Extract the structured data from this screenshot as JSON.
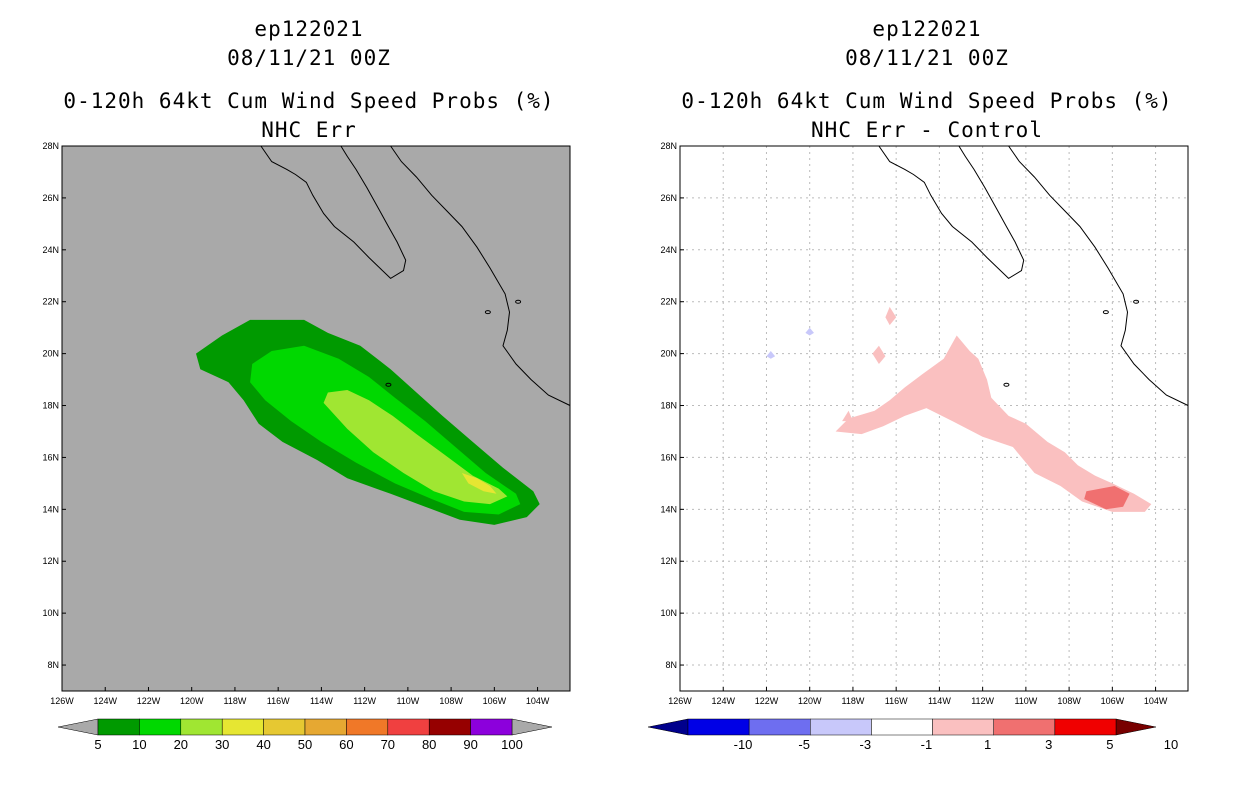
{
  "panels": [
    {
      "title_line1": "ep122021",
      "title_line2": "08/11/21 00Z",
      "title_line3": "0-120h 64kt Cum Wind Speed Probs (%)",
      "title_line4": "NHC Err",
      "background_color": "#a9a9a9",
      "colorbar": {
        "labels": [
          "5",
          "10",
          "20",
          "30",
          "40",
          "50",
          "60",
          "70",
          "80",
          "90",
          "100"
        ],
        "colors": [
          "#009a00",
          "#00d800",
          "#a0e632",
          "#e6e632",
          "#e6c832",
          "#e6a832",
          "#f07828",
          "#f04040",
          "#960000",
          "#8c00dc"
        ],
        "below_color": "#a9a9a9",
        "above_color": "#a9a9a9"
      }
    },
    {
      "title_line1": "ep122021",
      "title_line2": "08/11/21 00Z",
      "title_line3": "0-120h 64kt Cum Wind Speed Probs (%)",
      "title_line4": "NHC Err - Control",
      "background_color": "#ffffff",
      "colorbar": {
        "labels": [
          "-10",
          "-5",
          "-3",
          "-1",
          "1",
          "3",
          "5",
          "10"
        ],
        "colors": [
          "#0000e6",
          "#6e6ef0",
          "#c8c8fa",
          "#ffffff",
          "#fac0c0",
          "#f07070",
          "#f00000"
        ],
        "below_color": "#00008c",
        "above_color": "#780000"
      }
    }
  ],
  "chart_data": [
    {
      "type": "heatmap",
      "title": "ep122021 08/11/21 00Z 0-120h 64kt Cum Wind Speed Probs (%) NHC Err",
      "xlabel": "",
      "ylabel": "",
      "xlim": [
        -126,
        -102.5
      ],
      "ylim": [
        7,
        28
      ],
      "x_ticks": [
        -126,
        -124,
        -122,
        -120,
        -118,
        -116,
        -114,
        -112,
        -110,
        -108,
        -106,
        -104
      ],
      "x_tick_labels": [
        "126W",
        "124W",
        "122W",
        "120W",
        "118W",
        "116W",
        "114W",
        "112W",
        "110W",
        "108W",
        "106W",
        "104W"
      ],
      "y_ticks": [
        8,
        10,
        12,
        14,
        16,
        18,
        20,
        22,
        24,
        26,
        28
      ],
      "y_tick_labels": [
        "8N",
        "10N",
        "12N",
        "14N",
        "16N",
        "18N",
        "20N",
        "22N",
        "24N",
        "26N",
        "28N"
      ],
      "grid": false,
      "contours": [
        {
          "level": "5-10",
          "color": "#009a00",
          "outline": [
            [
              -119.8,
              20
            ],
            [
              -118.6,
              20.7
            ],
            [
              -117.3,
              21.3
            ],
            [
              -115.8,
              21.3
            ],
            [
              -114.8,
              21.3
            ],
            [
              -113.7,
              20.8
            ],
            [
              -112.2,
              20.3
            ],
            [
              -110.8,
              19.4
            ],
            [
              -109.6,
              18.5
            ],
            [
              -108.4,
              17.6
            ],
            [
              -107,
              16.6
            ],
            [
              -105.6,
              15.6
            ],
            [
              -104.2,
              14.7
            ],
            [
              -103.9,
              14.2
            ],
            [
              -104.5,
              13.7
            ],
            [
              -106,
              13.4
            ],
            [
              -107.6,
              13.6
            ],
            [
              -109.2,
              14.1
            ],
            [
              -110.8,
              14.6
            ],
            [
              -112.8,
              15.2
            ],
            [
              -114.2,
              15.9
            ],
            [
              -115.8,
              16.6
            ],
            [
              -116.9,
              17.3
            ],
            [
              -117.6,
              18.2
            ],
            [
              -118.3,
              18.9
            ],
            [
              -119.6,
              19.4
            ]
          ]
        },
        {
          "level": "10-20",
          "color": "#00d800",
          "outline": [
            [
              -117.2,
              19.6
            ],
            [
              -116.3,
              20.1
            ],
            [
              -114.8,
              20.3
            ],
            [
              -113.2,
              19.8
            ],
            [
              -111.8,
              19.1
            ],
            [
              -110.6,
              18.3
            ],
            [
              -109.2,
              17.4
            ],
            [
              -107.8,
              16.4
            ],
            [
              -106.4,
              15.4
            ],
            [
              -105,
              14.6
            ],
            [
              -104.8,
              14.2
            ],
            [
              -105.8,
              13.8
            ],
            [
              -107.4,
              13.9
            ],
            [
              -108.9,
              14.4
            ],
            [
              -110.6,
              15
            ],
            [
              -112.4,
              15.8
            ],
            [
              -114,
              16.6
            ],
            [
              -115.4,
              17.4
            ],
            [
              -116.6,
              18.2
            ],
            [
              -117.3,
              18.9
            ]
          ]
        },
        {
          "level": "20-30",
          "color": "#a0e632",
          "outline": [
            [
              -113.7,
              18.5
            ],
            [
              -112.8,
              18.6
            ],
            [
              -111.8,
              18.2
            ],
            [
              -110.7,
              17.6
            ],
            [
              -109.6,
              16.9
            ],
            [
              -108.3,
              16.1
            ],
            [
              -107,
              15.3
            ],
            [
              -105.8,
              14.8
            ],
            [
              -105.4,
              14.5
            ],
            [
              -106.2,
              14.2
            ],
            [
              -107.4,
              14.3
            ],
            [
              -108.8,
              14.7
            ],
            [
              -110.2,
              15.4
            ],
            [
              -111.6,
              16.2
            ],
            [
              -112.8,
              17.1
            ],
            [
              -113.9,
              18.1
            ]
          ]
        },
        {
          "level": "30-40",
          "color": "#e6e632",
          "outline": [
            [
              -107.5,
              15.4
            ],
            [
              -106.8,
              15.2
            ],
            [
              -106.2,
              14.9
            ],
            [
              -105.9,
              14.6
            ],
            [
              -106.5,
              14.7
            ],
            [
              -107.2,
              15
            ]
          ]
        }
      ]
    },
    {
      "type": "heatmap",
      "title": "ep122021 08/11/21 00Z 0-120h 64kt Cum Wind Speed Probs (%) NHC Err - Control",
      "xlabel": "",
      "ylabel": "",
      "xlim": [
        -126,
        -102.5
      ],
      "ylim": [
        7,
        28
      ],
      "x_ticks": [
        -126,
        -124,
        -122,
        -120,
        -118,
        -116,
        -114,
        -112,
        -110,
        -108,
        -106,
        -104
      ],
      "x_tick_labels": [
        "126W",
        "124W",
        "122W",
        "120W",
        "118W",
        "116W",
        "114W",
        "112W",
        "110W",
        "108W",
        "106W",
        "104W"
      ],
      "y_ticks": [
        8,
        10,
        12,
        14,
        16,
        18,
        20,
        22,
        24,
        26,
        28
      ],
      "y_tick_labels": [
        "8N",
        "10N",
        "12N",
        "14N",
        "16N",
        "18N",
        "20N",
        "22N",
        "24N",
        "26N",
        "28N"
      ],
      "grid": true,
      "contours": [
        {
          "level": "1-3",
          "color": "#fac0c0",
          "outline": [
            [
              -118.8,
              17
            ],
            [
              -118.2,
              17.5
            ],
            [
              -117,
              17.8
            ],
            [
              -116.3,
              18.2
            ],
            [
              -115.6,
              18.7
            ],
            [
              -114.8,
              19.2
            ],
            [
              -113.8,
              19.8
            ],
            [
              -113.2,
              20.7
            ],
            [
              -112.6,
              20.1
            ],
            [
              -112.2,
              19.8
            ],
            [
              -111.8,
              19
            ],
            [
              -111.6,
              18.3
            ],
            [
              -110.8,
              17.6
            ],
            [
              -110,
              17.3
            ],
            [
              -109,
              16.6
            ],
            [
              -108.2,
              16.2
            ],
            [
              -107.6,
              15.7
            ],
            [
              -106.8,
              15.3
            ],
            [
              -106,
              15
            ],
            [
              -105,
              14.6
            ],
            [
              -104.2,
              14.2
            ],
            [
              -104.5,
              13.9
            ],
            [
              -106,
              13.9
            ],
            [
              -107.4,
              14.3
            ],
            [
              -108.4,
              14.9
            ],
            [
              -109.6,
              15.4
            ],
            [
              -110.6,
              16.4
            ],
            [
              -112,
              16.8
            ],
            [
              -113.4,
              17.4
            ],
            [
              -114.6,
              17.9
            ],
            [
              -115.6,
              17.6
            ],
            [
              -116.6,
              17.2
            ],
            [
              -117.6,
              16.9
            ]
          ]
        },
        {
          "level": "1-3",
          "color": "#fac0c0",
          "outline": [
            [
              -118.2,
              17.8
            ],
            [
              -118,
              17.4
            ],
            [
              -118.5,
              17.4
            ]
          ]
        },
        {
          "level": "1-3",
          "color": "#fac0c0",
          "outline": [
            [
              -116.3,
              21.8
            ],
            [
              -116,
              21.4
            ],
            [
              -116.3,
              21.1
            ],
            [
              -116.5,
              21.4
            ]
          ]
        },
        {
          "level": "1-3",
          "color": "#fac0c0",
          "outline": [
            [
              -116.8,
              20.3
            ],
            [
              -116.5,
              19.9
            ],
            [
              -116.8,
              19.6
            ],
            [
              -117.1,
              20
            ]
          ]
        },
        {
          "level": "3-5",
          "color": "#f07070",
          "outline": [
            [
              -107.2,
              14.7
            ],
            [
              -105.9,
              14.9
            ],
            [
              -105.2,
              14.6
            ],
            [
              -105.5,
              14.1
            ],
            [
              -106.3,
              14
            ],
            [
              -107.3,
              14.4
            ]
          ]
        },
        {
          "level": "-3--1",
          "color": "#c8c8fa",
          "outline": [
            [
              -121.8,
              20.1
            ],
            [
              -121.6,
              19.9
            ],
            [
              -121.8,
              19.8
            ],
            [
              -122,
              19.9
            ]
          ]
        },
        {
          "level": "-3--1",
          "color": "#c8c8fa",
          "outline": [
            [
              -120,
              21
            ],
            [
              -119.8,
              20.8
            ],
            [
              -120,
              20.7
            ],
            [
              -120.2,
              20.8
            ]
          ]
        }
      ]
    }
  ]
}
